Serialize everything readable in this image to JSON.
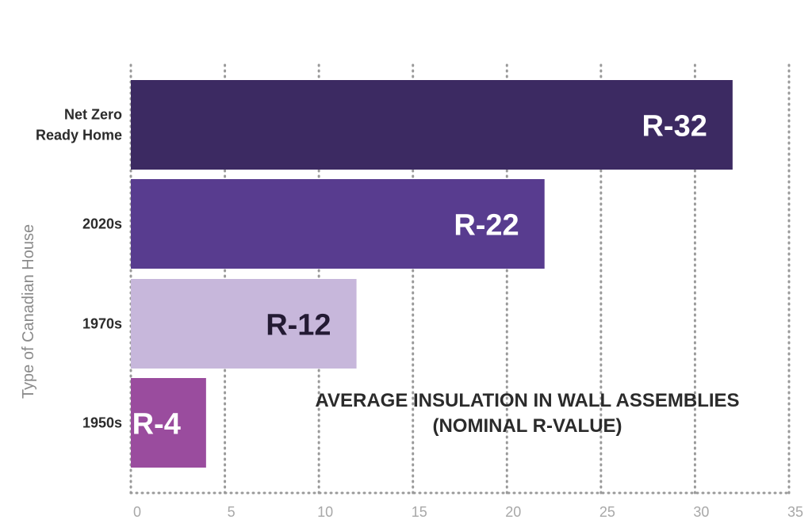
{
  "chart_data": {
    "type": "bar",
    "orientation": "horizontal",
    "title": "AVERAGE INSULATION IN WALL ASSEMBLIES",
    "subtitle": "(NOMINAL R-VALUE)",
    "ylabel": "Type of Canadian House",
    "xlabel": "",
    "categories": [
      [
        "Net Zero",
        "Ready Home"
      ],
      [
        "2020s"
      ],
      [
        "1970s"
      ],
      [
        "1950s"
      ]
    ],
    "values": [
      32,
      22,
      12,
      4
    ],
    "data_labels": [
      "R-32",
      "R-22",
      "R-12",
      "R-4"
    ],
    "bar_colors": [
      "#3c2a62",
      "#583c8f",
      "#c7b7db",
      "#9a4c9e"
    ],
    "label_colors": [
      "#ffffff",
      "#ffffff",
      "#231a33",
      "#ffffff"
    ],
    "xlim": [
      0,
      35
    ],
    "xticks": [
      0,
      5,
      10,
      15,
      20,
      25,
      30,
      35
    ],
    "grid": true
  }
}
